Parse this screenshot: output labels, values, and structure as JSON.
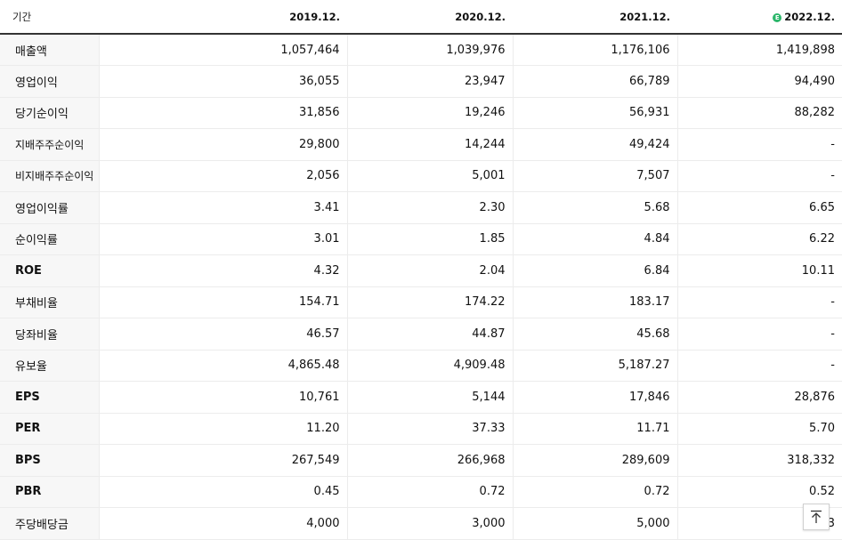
{
  "table": {
    "label_header": "기간",
    "columns": [
      {
        "label": "2019.12.",
        "estimate": false
      },
      {
        "label": "2020.12.",
        "estimate": false
      },
      {
        "label": "2021.12.",
        "estimate": false
      },
      {
        "label": "2022.12.",
        "estimate": true,
        "estimate_mark": "E"
      }
    ],
    "rows": [
      {
        "label": "매출액",
        "values": [
          "1,057,464",
          "1,039,976",
          "1,176,106",
          "1,419,898"
        ]
      },
      {
        "label": "영업이익",
        "values": [
          "36,055",
          "23,947",
          "66,789",
          "94,490"
        ]
      },
      {
        "label": "당기순이익",
        "values": [
          "31,856",
          "19,246",
          "56,931",
          "88,282"
        ]
      },
      {
        "label": "지배주주순이익",
        "values": [
          "29,800",
          "14,244",
          "49,424",
          "-"
        ]
      },
      {
        "label": "비지배주주순이익",
        "values": [
          "2,056",
          "5,001",
          "7,507",
          "-"
        ]
      },
      {
        "label": "영업이익률",
        "values": [
          "3.41",
          "2.30",
          "5.68",
          "6.65"
        ]
      },
      {
        "label": "순이익률",
        "values": [
          "3.01",
          "1.85",
          "4.84",
          "6.22"
        ]
      },
      {
        "label": "ROE",
        "values": [
          "4.32",
          "2.04",
          "6.84",
          "10.11"
        ]
      },
      {
        "label": "부채비율",
        "values": [
          "154.71",
          "174.22",
          "183.17",
          "-"
        ]
      },
      {
        "label": "당좌비율",
        "values": [
          "46.57",
          "44.87",
          "45.68",
          "-"
        ]
      },
      {
        "label": "유보율",
        "values": [
          "4,865.48",
          "4,909.48",
          "5,187.27",
          "-"
        ]
      },
      {
        "label": "EPS",
        "values": [
          "10,761",
          "5,144",
          "17,846",
          "28,876"
        ]
      },
      {
        "label": "PER",
        "values": [
          "11.20",
          "37.33",
          "11.71",
          "5.70"
        ]
      },
      {
        "label": "BPS",
        "values": [
          "267,549",
          "266,968",
          "289,609",
          "318,332"
        ]
      },
      {
        "label": "PBR",
        "values": [
          "0.45",
          "0.72",
          "0.72",
          "0.52"
        ]
      },
      {
        "label": "주당배당금",
        "values": [
          "4,000",
          "3,000",
          "5,000",
          "1,3"
        ]
      }
    ]
  },
  "scroll_top_button": {
    "icon": "arrow-up-to-top-icon"
  }
}
